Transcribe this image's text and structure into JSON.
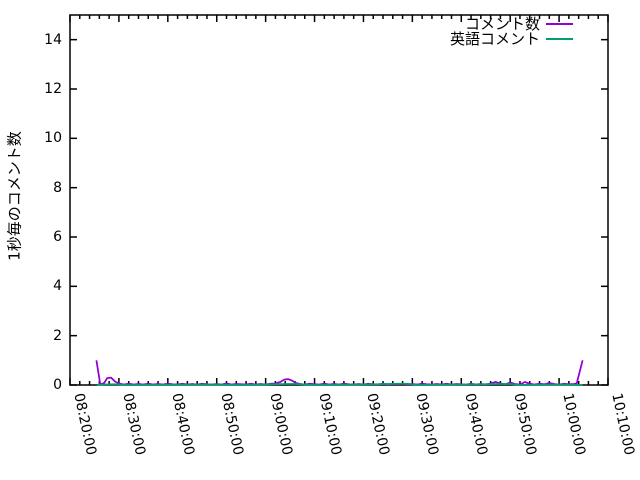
{
  "colors": {
    "series_comments": "#9400d3",
    "series_english": "#009e73",
    "axis": "#000000",
    "background": "#ffffff"
  },
  "axes": {
    "y_label": "1秒毎のコメント数",
    "y_ticks": [
      0,
      2,
      4,
      6,
      8,
      10,
      12,
      14
    ],
    "y_range": [
      0,
      15
    ],
    "x_tick_labels": [
      "08:20:00",
      "08:30:00",
      "08:40:00",
      "08:50:00",
      "09:00:00",
      "09:10:00",
      "09:20:00",
      "09:30:00",
      "09:40:00",
      "09:50:00",
      "10:00:00",
      "10:10:00"
    ],
    "x_range_minutes": [
      0,
      110
    ],
    "x_major_step_minutes": 10,
    "x_minor_step_minutes": 2
  },
  "legend": [
    {
      "label": "コメント数",
      "color": "#9400d3"
    },
    {
      "label": "英語コメント",
      "color": "#009e73"
    }
  ],
  "chart_data": {
    "type": "line",
    "title": "",
    "xlabel": "",
    "ylabel": "1秒毎のコメント数",
    "x_axis": "time of day, 08:20:00 to 10:10:00, major ticks every 10 min, minor every 2 min",
    "x_unit": "minutes after 08:20:00",
    "ylim": [
      0,
      15
    ],
    "grid": false,
    "legend_position": "top-right-inside",
    "series": [
      {
        "name": "コメント数",
        "color": "#9400d3",
        "points": [
          [
            5.4,
            1.0
          ],
          [
            6.2,
            0.02
          ],
          [
            7.0,
            0.08
          ],
          [
            7.6,
            0.28
          ],
          [
            8.4,
            0.3
          ],
          [
            9.2,
            0.14
          ],
          [
            10.0,
            0.06
          ],
          [
            11,
            0.02
          ],
          [
            12,
            0.05
          ],
          [
            13,
            0.02
          ],
          [
            14,
            0.04
          ],
          [
            15,
            0.02
          ],
          [
            16,
            0.05
          ],
          [
            17,
            0.02
          ],
          [
            18,
            0.04
          ],
          [
            19,
            0.02
          ],
          [
            20,
            0.05
          ],
          [
            21,
            0.03
          ],
          [
            22,
            0.02
          ],
          [
            23,
            0.05
          ],
          [
            24,
            0.02
          ],
          [
            25,
            0.04
          ],
          [
            26,
            0.02
          ],
          [
            27,
            0.05
          ],
          [
            28,
            0.03
          ],
          [
            29,
            0.02
          ],
          [
            30,
            0.04
          ],
          [
            31,
            0.02
          ],
          [
            32,
            0.06
          ],
          [
            33,
            0.02
          ],
          [
            34,
            0.04
          ],
          [
            35,
            0.03
          ],
          [
            36,
            0.02
          ],
          [
            37,
            0.05
          ],
          [
            38,
            0.02
          ],
          [
            39,
            0.04
          ],
          [
            40,
            0.02
          ],
          [
            41,
            0.05
          ],
          [
            42,
            0.06
          ],
          [
            43,
            0.12
          ],
          [
            43.8,
            0.22
          ],
          [
            44.6,
            0.24
          ],
          [
            45.4,
            0.18
          ],
          [
            46.2,
            0.08
          ],
          [
            47,
            0.04
          ],
          [
            48,
            0.02
          ],
          [
            49,
            0.05
          ],
          [
            50,
            0.03
          ],
          [
            51,
            0.02
          ],
          [
            52,
            0.05
          ],
          [
            53,
            0.02
          ],
          [
            54,
            0.04
          ],
          [
            55,
            0.02
          ],
          [
            56,
            0.05
          ],
          [
            57,
            0.03
          ],
          [
            58,
            0.02
          ],
          [
            59,
            0.04
          ],
          [
            60,
            0.02
          ],
          [
            61,
            0.05
          ],
          [
            62,
            0.03
          ],
          [
            63,
            0.02
          ],
          [
            64,
            0.05
          ],
          [
            65,
            0.02
          ],
          [
            66,
            0.04
          ],
          [
            67,
            0.03
          ],
          [
            68,
            0.05
          ],
          [
            69,
            0.02
          ],
          [
            70,
            0.04
          ],
          [
            71,
            0.02
          ],
          [
            72,
            0.05
          ],
          [
            73,
            0.03
          ],
          [
            74,
            0.02
          ],
          [
            75,
            0.04
          ],
          [
            76,
            0.02
          ],
          [
            77,
            0.05
          ],
          [
            78,
            0.02
          ],
          [
            79,
            0.04
          ],
          [
            80,
            0.03
          ],
          [
            81,
            0.02
          ],
          [
            82,
            0.05
          ],
          [
            83,
            0.02
          ],
          [
            84,
            0.04
          ],
          [
            85,
            0.02
          ],
          [
            86,
            0.06
          ],
          [
            87,
            0.12
          ],
          [
            88,
            0.06
          ],
          [
            89,
            0.03
          ],
          [
            90,
            0.1
          ],
          [
            91,
            0.04
          ],
          [
            92,
            0.02
          ],
          [
            93,
            0.12
          ],
          [
            94,
            0.05
          ],
          [
            95,
            0.02
          ],
          [
            96,
            0.05
          ],
          [
            97,
            0.03
          ],
          [
            98,
            0.08
          ],
          [
            99,
            0.04
          ],
          [
            100,
            0.02
          ],
          [
            101,
            0.05
          ],
          [
            102,
            0.03
          ],
          [
            103,
            0.04
          ],
          [
            103.6,
            0.06
          ],
          [
            104.8,
            1.0
          ]
        ]
      },
      {
        "name": "英語コメント",
        "color": "#009e73",
        "points": [
          [
            5.5,
            0.0
          ],
          [
            7.0,
            0.02
          ],
          [
            9.0,
            0.03
          ],
          [
            12,
            0.0
          ],
          [
            20,
            0.01
          ],
          [
            30,
            0.02
          ],
          [
            35,
            0.0
          ],
          [
            44,
            0.04
          ],
          [
            46,
            0.04
          ],
          [
            50,
            0.0
          ],
          [
            60,
            0.02
          ],
          [
            67,
            0.05
          ],
          [
            69,
            0.05
          ],
          [
            71,
            0.0
          ],
          [
            80,
            0.02
          ],
          [
            88,
            0.04
          ],
          [
            90,
            0.04
          ],
          [
            92,
            0.0
          ],
          [
            100,
            0.02
          ],
          [
            104.8,
            0.0
          ]
        ]
      }
    ]
  }
}
